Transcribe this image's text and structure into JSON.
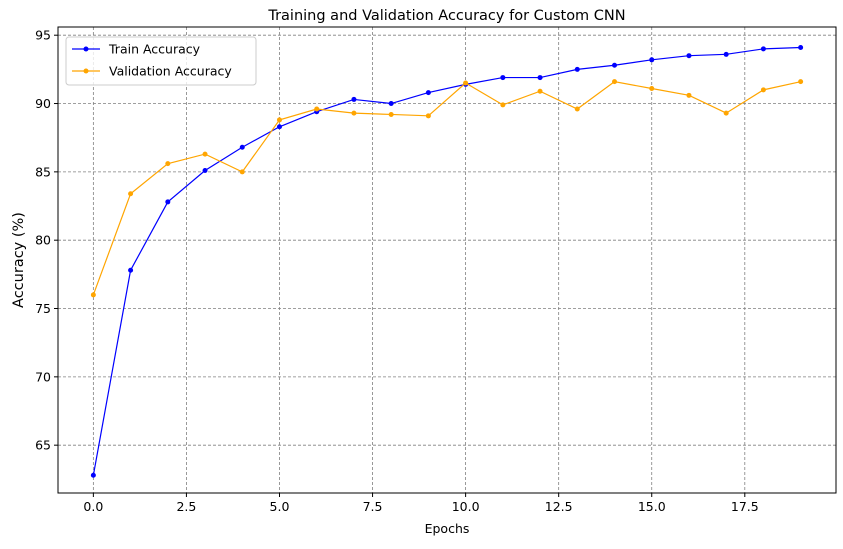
{
  "chart_data": {
    "type": "line",
    "title": "Training and Validation Accuracy for Custom CNN",
    "xlabel": "Epochs",
    "ylabel": "Accuracy (%)",
    "xlim": [
      -0.95,
      19.95
    ],
    "ylim": [
      61.5,
      95.6
    ],
    "xticks": [
      0.0,
      2.5,
      5.0,
      7.5,
      10.0,
      12.5,
      15.0,
      17.5
    ],
    "xtick_labels": [
      "0.0",
      "2.5",
      "5.0",
      "7.5",
      "10.0",
      "12.5",
      "15.0",
      "17.5"
    ],
    "yticks": [
      65,
      70,
      75,
      80,
      85,
      90,
      95
    ],
    "ytick_labels": [
      "65",
      "70",
      "75",
      "80",
      "85",
      "90",
      "95"
    ],
    "grid": true,
    "legend_position": "upper-left",
    "x": [
      0,
      1,
      2,
      3,
      4,
      5,
      6,
      7,
      8,
      9,
      10,
      11,
      12,
      13,
      14,
      15,
      16,
      17,
      18,
      19
    ],
    "series": [
      {
        "name": "Train Accuracy",
        "color": "#0000ff",
        "values": [
          62.8,
          77.8,
          82.8,
          85.1,
          86.8,
          88.3,
          89.4,
          90.3,
          90.0,
          90.8,
          91.4,
          91.9,
          91.9,
          92.5,
          92.8,
          93.2,
          93.5,
          93.6,
          94.0,
          94.1
        ]
      },
      {
        "name": "Validation Accuracy",
        "color": "#ffa500",
        "values": [
          76.0,
          83.4,
          85.6,
          86.3,
          85.0,
          88.8,
          89.6,
          89.3,
          89.2,
          89.1,
          91.5,
          89.9,
          90.9,
          89.6,
          91.6,
          91.1,
          90.6,
          89.3,
          91.0,
          91.6
        ]
      }
    ]
  }
}
